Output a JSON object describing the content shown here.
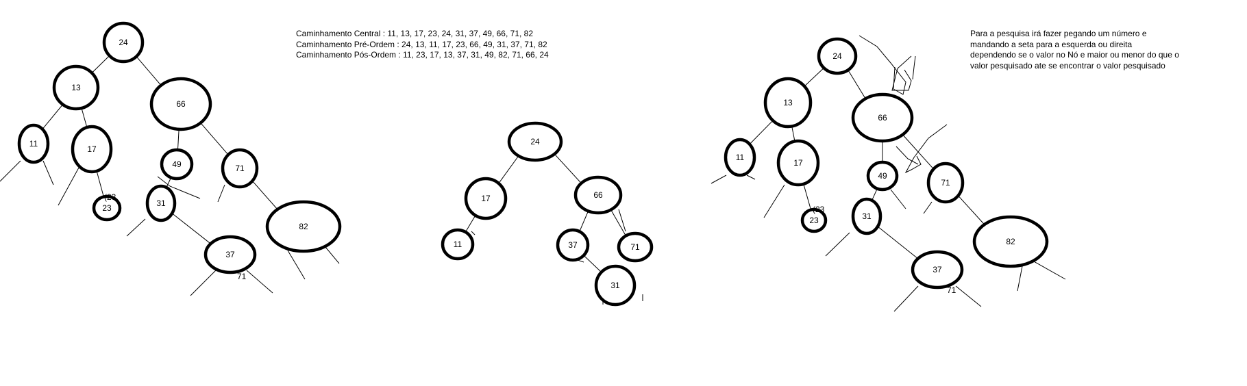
{
  "traversals": {
    "central": "Caminhamento Central : 11, 13, 17, 23, 24, 31, 37, 49, 66, 71, 82",
    "pre_order": "Caminhamento Pré-Ordem : 24, 13, 11, 17, 23, 66, 49, 31, 37, 71, 82",
    "post_order": "Caminhamento Pós-Ordem : 11, 23, 17, 13, 37, 31, 49, 82, 71, 66, 24"
  },
  "search_note": "Para a pesquisa irá fazer pegando um número e mandando a seta para a esquerda ou direita dependendo se o valor no Nó e maior ou menor do que o valor pesquisado ate se encontrar o valor pesquisado",
  "trees": [
    {
      "name": "tree-1",
      "nodes": [
        "24",
        "13",
        "66",
        "11",
        "17",
        "49",
        "71",
        "23",
        "31",
        "82",
        "37"
      ],
      "stray_labels": [
        "(23",
        "71"
      ]
    },
    {
      "name": "tree-2",
      "nodes": [
        "24",
        "17",
        "66",
        "11",
        "37",
        "71",
        "31"
      ],
      "stray_labels": []
    },
    {
      "name": "tree-3",
      "nodes": [
        "24",
        "13",
        "66",
        "11",
        "17",
        "49",
        "71",
        "23",
        "31",
        "82",
        "37"
      ],
      "stray_labels": [
        "(23",
        "71"
      ]
    }
  ],
  "colors": {
    "ink": "#000000",
    "background": "#ffffff"
  }
}
